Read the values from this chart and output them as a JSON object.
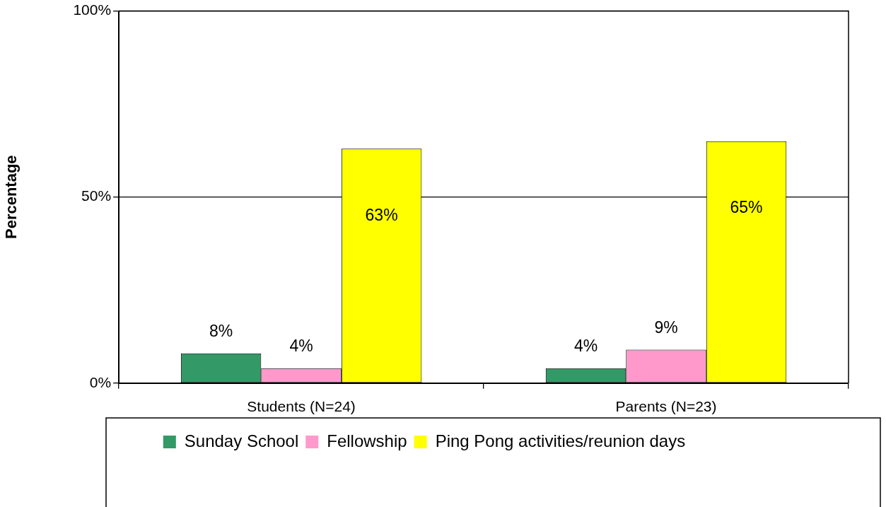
{
  "chart_data": {
    "type": "bar",
    "ylabel": "Percentage",
    "categories": [
      "Students (N=24)",
      "Parents (N=23)"
    ],
    "series": [
      {
        "name": "Sunday School",
        "color": "#339966",
        "values": [
          8,
          4
        ],
        "value_labels": [
          "8%",
          "4%"
        ]
      },
      {
        "name": "Fellowship",
        "color": "#ff99cc",
        "values": [
          4,
          9
        ],
        "value_labels": [
          "4%",
          "9%"
        ]
      },
      {
        "name": "Ping Pong activities/reunion days",
        "color": "#ffff00",
        "values": [
          63,
          65
        ],
        "value_labels": [
          "63%",
          "65%"
        ]
      }
    ],
    "ylim": [
      0,
      100
    ],
    "yticks": [
      {
        "value": 0,
        "label": "0%"
      },
      {
        "value": 50,
        "label": "50%"
      },
      {
        "value": 100,
        "label": "100%"
      }
    ],
    "grid": "y",
    "legend": "bottom"
  }
}
